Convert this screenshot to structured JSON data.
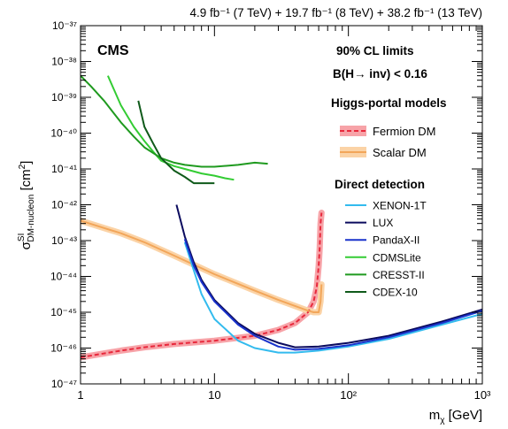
{
  "chart_data": {
    "type": "line",
    "title": "4.9 fb⁻¹ (7 TeV) + 19.7 fb⁻¹ (8 TeV) + 38.2 fb⁻¹ (13 TeV)",
    "experiment_label": "CMS",
    "xlabel": "mχ [GeV]",
    "ylabel": "σ^SI_DM-nucleon [cm²]",
    "x_scale": "log",
    "y_scale": "log",
    "xlim": [
      1,
      1000
    ],
    "ylim": [
      1e-47,
      1e-37
    ],
    "grid": false,
    "x_ticks": [
      {
        "value": 1,
        "label": "1"
      },
      {
        "value": 10,
        "label": "10"
      },
      {
        "value": 100,
        "label": "10²"
      },
      {
        "value": 1000,
        "label": "10³"
      }
    ],
    "y_ticks": [
      {
        "value": 1e-47,
        "label": "10⁻⁴⁷"
      },
      {
        "value": 1e-46,
        "label": "10⁻⁴⁶"
      },
      {
        "value": 1e-45,
        "label": "10⁻⁴⁵"
      },
      {
        "value": 1e-44,
        "label": "10⁻⁴⁴"
      },
      {
        "value": 1e-43,
        "label": "10⁻⁴³"
      },
      {
        "value": 1e-42,
        "label": "10⁻⁴²"
      },
      {
        "value": 1e-41,
        "label": "10⁻⁴¹"
      },
      {
        "value": 1e-40,
        "label": "10⁻⁴⁰"
      },
      {
        "value": 1e-39,
        "label": "10⁻³⁹"
      },
      {
        "value": 1e-38,
        "label": "10⁻³⁸"
      },
      {
        "value": 1e-37,
        "label": "10⁻³⁷"
      }
    ],
    "annotations": [
      "90% CL limits",
      "B(H→ inv) < 0.16"
    ],
    "legend_placement": "right",
    "legend_groups": [
      {
        "title": "Higgs-portal models",
        "entries": [
          "Fermion DM",
          "Scalar DM"
        ]
      },
      {
        "title": "Direct detection",
        "entries": [
          "XENON-1T",
          "LUX",
          "PandaX-II",
          "CDMSLite",
          "CRESST-II",
          "CDEX-10"
        ]
      }
    ],
    "series": [
      {
        "name": "Fermion DM",
        "color": "#e8283c",
        "style": "dashed",
        "band_color": "#f7a3a8",
        "x": [
          1,
          2,
          3,
          5,
          10,
          20,
          30,
          40,
          50,
          55,
          58,
          60,
          61,
          62,
          63
        ],
        "y": [
          5.5e-47,
          8.5e-47,
          1.05e-46,
          1.3e-46,
          1.6e-46,
          2.2e-46,
          3.2e-46,
          5e-46,
          1e-45,
          2e-45,
          5e-45,
          2e-44,
          6e-44,
          3e-43,
          6e-43
        ]
      },
      {
        "name": "Scalar DM",
        "color": "#f2a65a",
        "style": "solid",
        "band_color": "#fbd3a6",
        "x": [
          1,
          2,
          3,
          5,
          10,
          20,
          30,
          40,
          50,
          55,
          60,
          62,
          63
        ],
        "y": [
          3.6e-43,
          1.6e-43,
          9e-44,
          3.8e-44,
          1.15e-44,
          4e-45,
          2.2e-45,
          1.5e-45,
          1.1e-45,
          1e-45,
          1e-45,
          2e-45,
          6e-45
        ]
      },
      {
        "name": "XENON-1T",
        "color": "#33bbee",
        "style": "solid",
        "x": [
          6,
          7,
          8,
          10,
          15,
          20,
          30,
          40,
          60,
          100,
          200,
          500,
          1000
        ],
        "y": [
          9e-44,
          1.5e-44,
          3.2e-45,
          6.5e-46,
          1.6e-46,
          1e-46,
          7.5e-47,
          7.5e-47,
          8.5e-47,
          1.1e-46,
          1.8e-46,
          4.5e-46,
          9e-46
        ]
      },
      {
        "name": "LUX",
        "color": "#0b0b5e",
        "style": "solid",
        "x": [
          5.2,
          6,
          7,
          8,
          10,
          15,
          20,
          30,
          40,
          60,
          100,
          200,
          500,
          1000
        ],
        "y": [
          1e-42,
          1.3e-43,
          2.5e-44,
          8e-45,
          2.2e-45,
          5e-46,
          2.5e-46,
          1.4e-46,
          1.05e-46,
          1.1e-46,
          1.4e-46,
          2.2e-46,
          5.5e-46,
          1.2e-45
        ]
      },
      {
        "name": "PandaX-II",
        "color": "#1a33cc",
        "style": "solid",
        "x": [
          6,
          7,
          8,
          10,
          15,
          20,
          30,
          40,
          60,
          100,
          200,
          500,
          1000
        ],
        "y": [
          1.1e-43,
          2e-44,
          7e-45,
          2e-45,
          4.5e-46,
          2.2e-46,
          1.1e-46,
          9e-47,
          9.5e-47,
          1.2e-46,
          2e-46,
          5e-46,
          1.1e-45
        ]
      },
      {
        "name": "CDMSLite",
        "color": "#33cc33",
        "style": "solid",
        "x": [
          1.6,
          2,
          2.5,
          3,
          3.5,
          4,
          5,
          6,
          8,
          10,
          12,
          14
        ],
        "y": [
          4e-39,
          6e-40,
          1.5e-40,
          6e-41,
          3e-41,
          1.7e-41,
          1.2e-41,
          1e-41,
          7.5e-42,
          6.5e-42,
          5.5e-42,
          5e-42
        ]
      },
      {
        "name": "CRESST-II",
        "color": "#1f9a1f",
        "style": "solid",
        "x": [
          1,
          1.2,
          1.5,
          2,
          2.5,
          3,
          4,
          5,
          6,
          8,
          10,
          15,
          20,
          25
        ],
        "y": [
          4e-39,
          2e-39,
          8e-40,
          2e-40,
          8e-41,
          4e-41,
          2e-41,
          1.5e-41,
          1.3e-41,
          1.15e-41,
          1.15e-41,
          1.3e-41,
          1.5e-41,
          1.4e-41
        ]
      },
      {
        "name": "CDEX-10",
        "color": "#0f5a1a",
        "style": "solid",
        "x": [
          2.7,
          3,
          3.5,
          4,
          5,
          6,
          7,
          8,
          10
        ],
        "y": [
          8e-40,
          1.5e-40,
          5e-41,
          2e-41,
          9e-42,
          6e-42,
          4e-42,
          4e-42,
          4e-42
        ]
      }
    ]
  }
}
